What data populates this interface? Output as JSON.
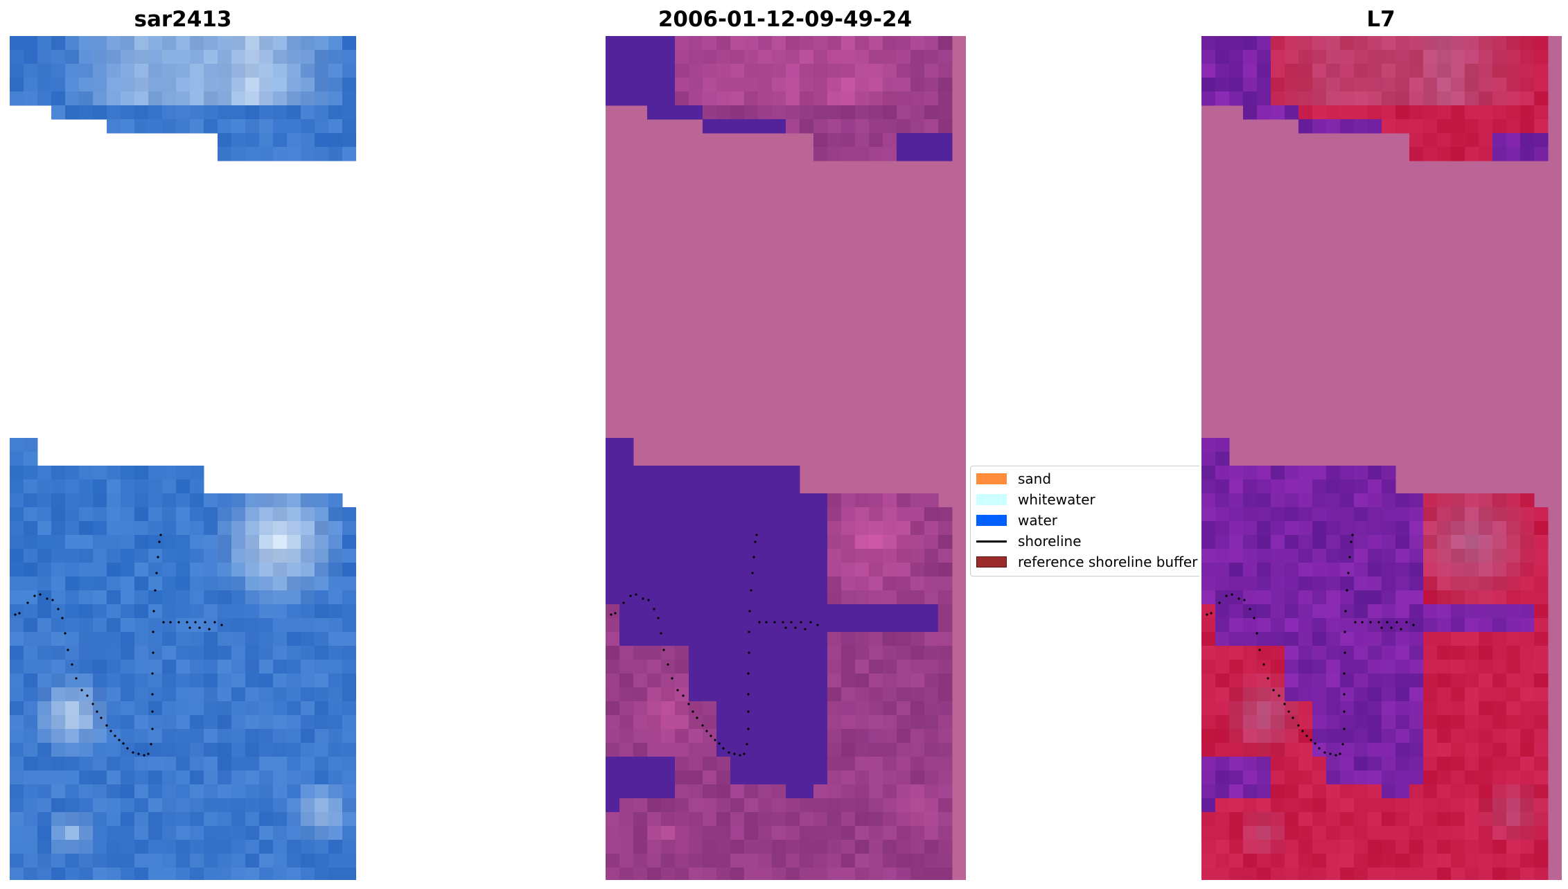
{
  "panels": [
    {
      "title": "sar2413",
      "colormap": "rgb-blue"
    },
    {
      "title": "2006-01-12-09-49-24",
      "colormap": "classified-purple"
    },
    {
      "title": "L7",
      "colormap": "mndwi-red-purple"
    }
  ],
  "legend": {
    "items": [
      {
        "label": "sand",
        "type": "patch",
        "color": "#ff8c3a"
      },
      {
        "label": "whitewater",
        "type": "patch",
        "color": "#ccffff"
      },
      {
        "label": "water",
        "type": "patch",
        "color": "#0060ff"
      },
      {
        "label": "shoreline",
        "type": "line",
        "color": "#000000"
      },
      {
        "label": "reference shoreline buffer",
        "type": "patch",
        "color": "#9b2a2a"
      }
    ]
  },
  "colors": {
    "nodata_pink": "#bb6496",
    "water_purple": "#52239a",
    "shoreline_dots": "#000000"
  }
}
